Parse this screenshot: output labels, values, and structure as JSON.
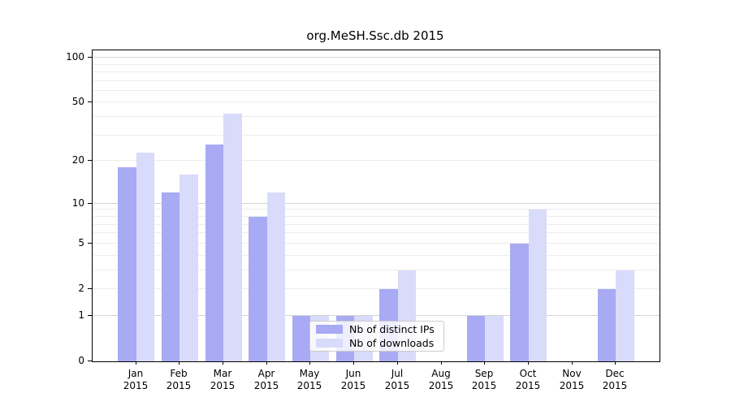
{
  "title": "org.MeSH.Ssc.db 2015",
  "chart_data": {
    "type": "bar",
    "title": "org.MeSH.Ssc.db 2015",
    "yscale": "log1p",
    "ylim": [
      0,
      112
    ],
    "grid": true,
    "legend_position": "inside bottom-center-left",
    "categories": [
      "Jan",
      "Feb",
      "Mar",
      "Apr",
      "May",
      "Jun",
      "Jul",
      "Aug",
      "Sep",
      "Oct",
      "Nov",
      "Dec"
    ],
    "x_year_label": "2015",
    "ytick_labels": [
      0,
      1,
      2,
      5,
      10,
      20,
      50,
      100
    ],
    "major_gridlines": [
      1,
      10,
      100
    ],
    "minor_gridlines": [
      2,
      3,
      4,
      5,
      6,
      7,
      8,
      9,
      20,
      30,
      40,
      50,
      60,
      70,
      80,
      90
    ],
    "series": [
      {
        "name": "Nb of distinct IPs",
        "color": "#a8aaf4",
        "values": [
          18,
          12,
          26,
          8,
          1,
          1,
          2,
          0,
          1,
          5,
          0,
          2
        ]
      },
      {
        "name": "Nb of downloads",
        "color": "#d9dbfa",
        "values": [
          23,
          16,
          42,
          12,
          1,
          1,
          3,
          0,
          1,
          9,
          0,
          3
        ]
      }
    ]
  }
}
